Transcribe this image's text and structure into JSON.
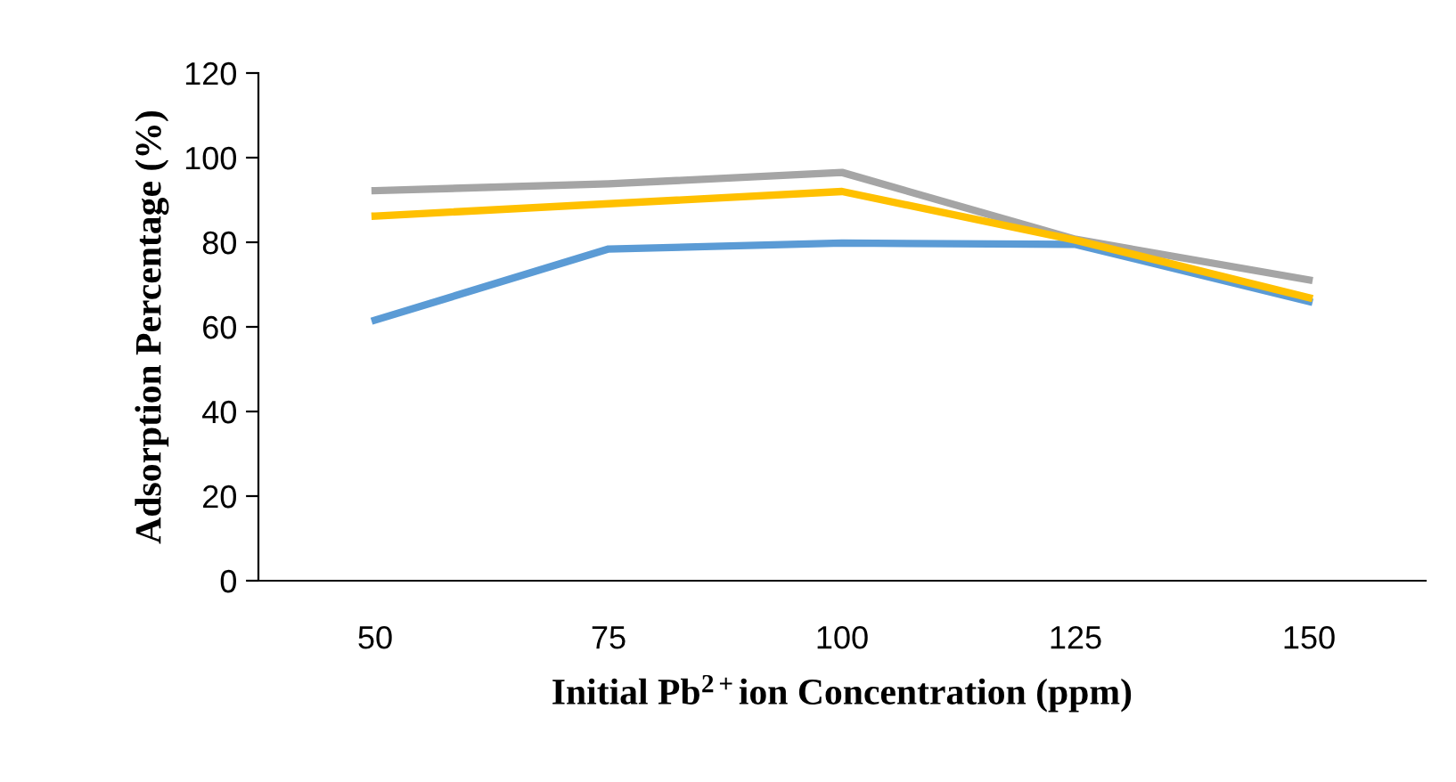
{
  "chart_data": {
    "type": "line",
    "xlabel": "Initial Pb$^{2+}$ion Concentration (ppm)",
    "ylabel": "Adsorption Percentage (%)",
    "categories": [
      "50",
      "75",
      "100",
      "125",
      "150"
    ],
    "ylim": [
      0,
      120
    ],
    "yticks": [
      0,
      20,
      40,
      60,
      80,
      100,
      120
    ],
    "grid": false,
    "legend": false,
    "marker": "none",
    "line_style": "solid",
    "series": [
      {
        "color": "#5b9bd5",
        "values": [
          61.6,
          78.4,
          79.8,
          79.5,
          66.0
        ]
      },
      {
        "color": "#a5a5a5",
        "values": [
          92.2,
          93.8,
          96.5,
          80.7,
          71.1
        ]
      },
      {
        "color": "#ffc000",
        "values": [
          86.2,
          89.1,
          92.0,
          80.5,
          66.9
        ]
      }
    ]
  }
}
